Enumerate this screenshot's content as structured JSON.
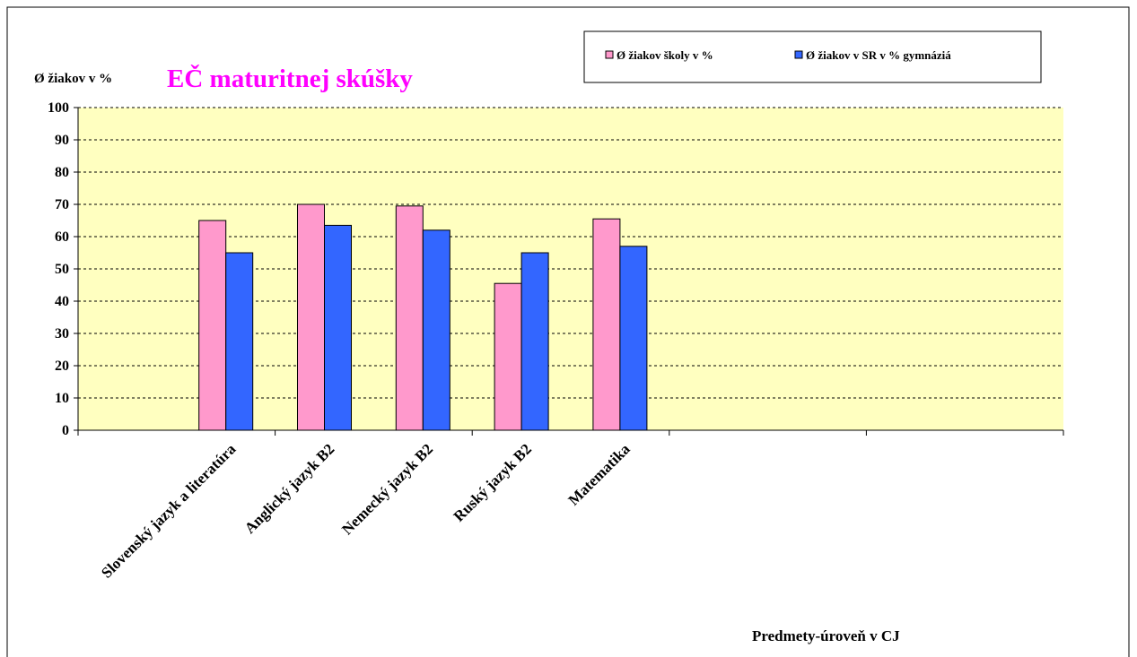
{
  "chart_data": {
    "type": "bar",
    "title": "EČ maturitnej skúšky",
    "y_label": "Ø žiakov v %",
    "x_label": "Predmety-úroveň v CJ",
    "categories": [
      null,
      "Slovenský jazyk a literatúra",
      "Anglický jazyk B2",
      "Nemecký jazyk B2",
      "Ruský jazyk B2",
      "Matematika",
      null,
      null,
      null,
      null
    ],
    "series": [
      {
        "name": "Ø žiakov školy v %",
        "color": "#ff99cc",
        "values": [
          null,
          65,
          70,
          69.5,
          45.5,
          65.5,
          null,
          null,
          null,
          null
        ]
      },
      {
        "name": "Ø žiakov v SR v % gymnáziá",
        "color": "#3366ff",
        "values": [
          null,
          55,
          63.5,
          62,
          55,
          57,
          null,
          null,
          null,
          null
        ]
      }
    ],
    "ylim": [
      0,
      100
    ],
    "yticks": [
      0,
      10,
      20,
      30,
      40,
      50,
      60,
      70,
      80,
      90,
      100
    ],
    "grid": true,
    "legend": "top-right",
    "plot_background": "#ffffc0"
  }
}
